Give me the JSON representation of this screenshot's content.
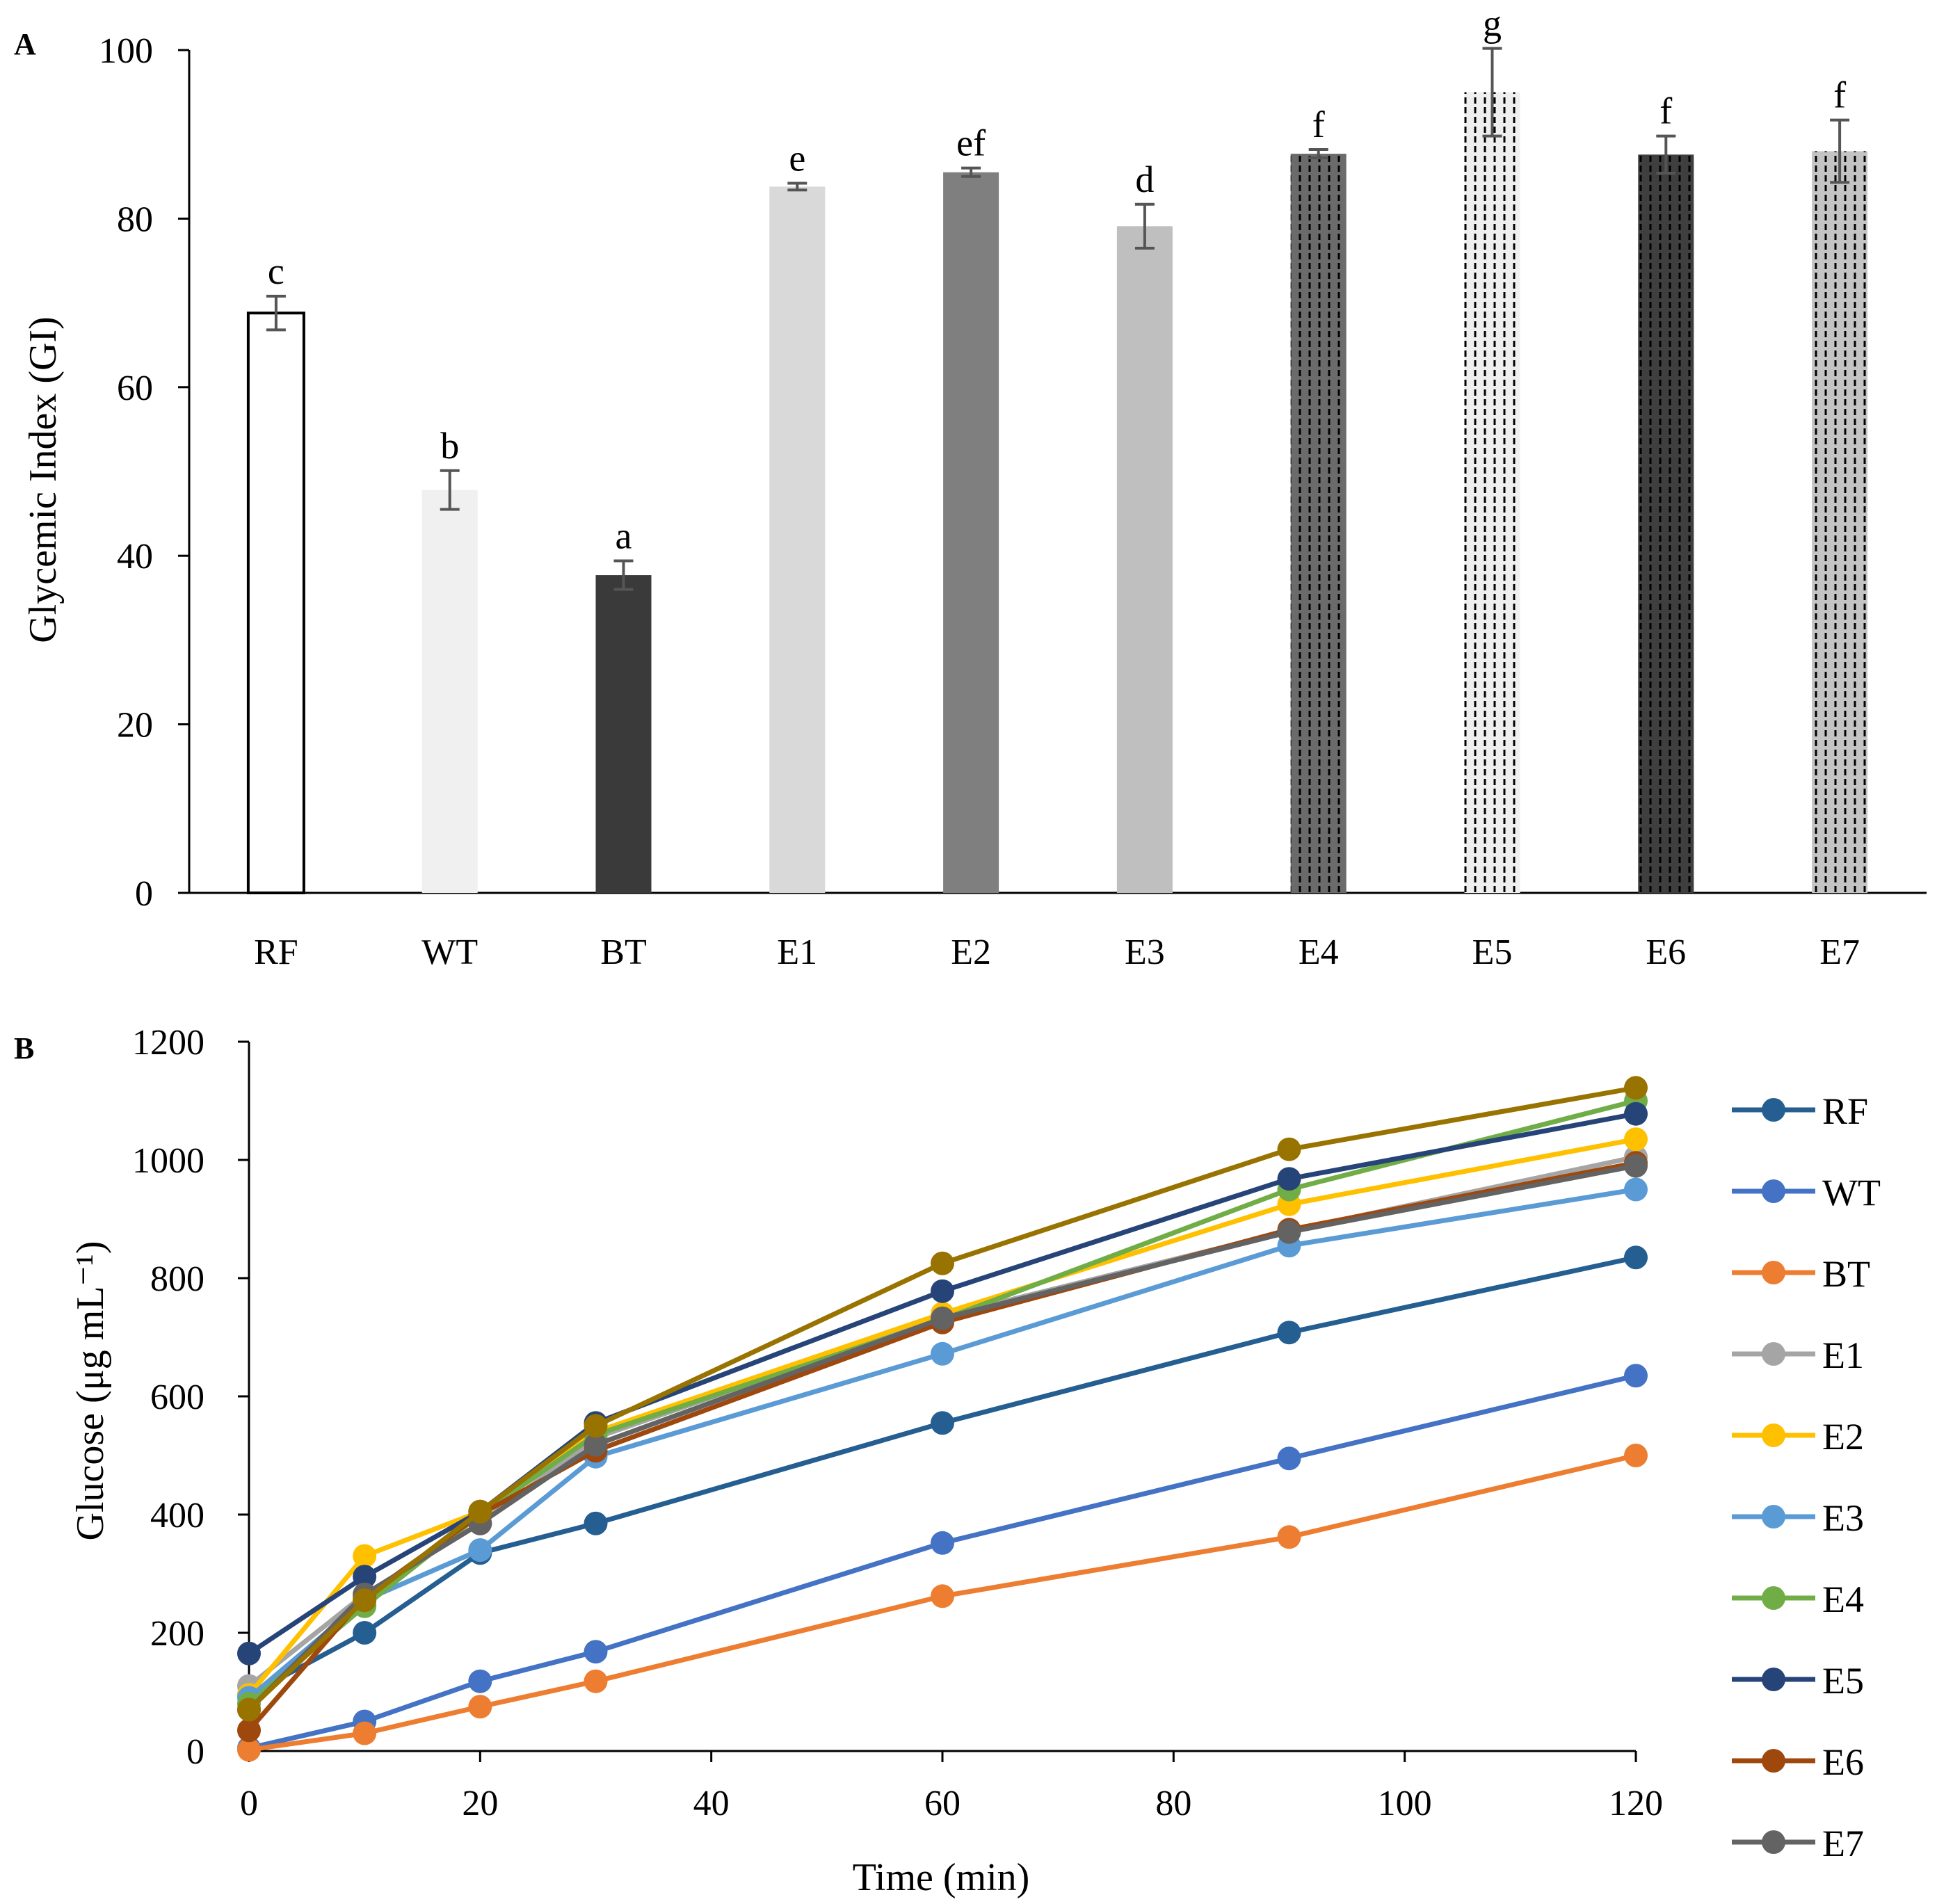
{
  "chart_data": [
    {
      "panel": "A",
      "type": "bar",
      "title": "",
      "xlabel": "",
      "ylabel": "Glycemic Index (GI)",
      "ylim": [
        0,
        100
      ],
      "yticks": [
        "0",
        "20",
        "40",
        "60",
        "80",
        "100"
      ],
      "categories": [
        "RF",
        "WT",
        "BT",
        "E1",
        "E2",
        "E3",
        "E4",
        "E5",
        "E6",
        "E7"
      ],
      "values": [
        68.8,
        47.8,
        37.7,
        83.8,
        85.5,
        79.1,
        87.7,
        95.0,
        87.6,
        88.0
      ],
      "errors": [
        2.0,
        2.3,
        1.7,
        0.4,
        0.5,
        2.6,
        0.5,
        5.2,
        2.2,
        3.7
      ],
      "letters": [
        "c",
        "b",
        "a",
        "e",
        "ef",
        "d",
        "f",
        "g",
        "f",
        "f"
      ],
      "fills": [
        "#ffffff",
        "#f0f0f0",
        "#3a3a3a",
        "#d9d9d9",
        "#7f7f7f",
        "#bfbfbf",
        "#6b6b6b",
        "#efefef",
        "#3f3f3f",
        "#c4c4c4"
      ],
      "hatched": [
        false,
        false,
        false,
        false,
        false,
        false,
        true,
        true,
        true,
        true
      ],
      "outlined": [
        true,
        false,
        false,
        false,
        false,
        false,
        false,
        false,
        false,
        false
      ]
    },
    {
      "panel": "B",
      "type": "line",
      "title": "",
      "xlabel": "Time (min)",
      "ylabel": "Glucose (μg mL⁻¹)",
      "xlim": [
        0,
        120
      ],
      "ylim": [
        0,
        1200
      ],
      "xticks": [
        "0",
        "20",
        "40",
        "60",
        "80",
        "100",
        "120"
      ],
      "yticks": [
        "0",
        "200",
        "400",
        "600",
        "800",
        "1000",
        "1200"
      ],
      "x": [
        0,
        10,
        20,
        30,
        60,
        90,
        120
      ],
      "series": [
        {
          "name": "RF",
          "color": "#255e91",
          "values": [
            95,
            200,
            335,
            385,
            555,
            708,
            835
          ]
        },
        {
          "name": "WT",
          "color": "#4472c4",
          "values": [
            5,
            50,
            118,
            168,
            352,
            495,
            635
          ]
        },
        {
          "name": "BT",
          "color": "#ed7d31",
          "values": [
            2,
            30,
            75,
            118,
            262,
            362,
            500
          ]
        },
        {
          "name": "E1",
          "color": "#a5a5a5",
          "values": [
            110,
            265,
            385,
            530,
            735,
            880,
            1005
          ]
        },
        {
          "name": "E2",
          "color": "#ffc000",
          "values": [
            95,
            330,
            405,
            540,
            740,
            925,
            1035
          ]
        },
        {
          "name": "E3",
          "color": "#5b9bd5",
          "values": [
            90,
            255,
            340,
            498,
            672,
            855,
            950
          ]
        },
        {
          "name": "E4",
          "color": "#70ad47",
          "values": [
            80,
            245,
            400,
            535,
            730,
            950,
            1100
          ]
        },
        {
          "name": "E5",
          "color": "#264478",
          "values": [
            165,
            295,
            405,
            555,
            778,
            968,
            1078
          ]
        },
        {
          "name": "E6",
          "color": "#9e480e",
          "values": [
            35,
            260,
            400,
            508,
            725,
            882,
            995
          ]
        },
        {
          "name": "E7",
          "color": "#636363",
          "values": [
            70,
            265,
            385,
            518,
            732,
            878,
            990
          ]
        },
        {
          "name": "",
          "color": "#997300",
          "values": [
            70,
            255,
            405,
            550,
            825,
            1018,
            1122
          ]
        }
      ]
    }
  ],
  "panels": {
    "a_label": "A",
    "b_label": "B"
  }
}
